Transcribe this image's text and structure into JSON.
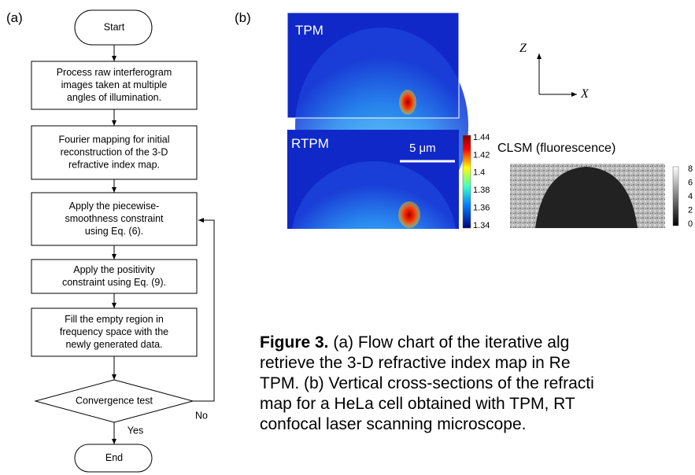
{
  "panels": {
    "a": "(a)",
    "b": "(b)"
  },
  "flowchart": {
    "nodes": [
      {
        "lines": [
          "Start"
        ]
      },
      {
        "lines": [
          "Process raw interferogram",
          "images taken at multiple",
          "angles of illumination."
        ]
      },
      {
        "lines": [
          "Fourier mapping for initial",
          "reconstruction of the 3-D",
          "refractive index map."
        ]
      },
      {
        "lines": [
          "Apply the piecewise-",
          "smoothness constraint",
          "using Eq. (6)."
        ]
      },
      {
        "lines": [
          "Apply the positivity",
          "constraint using Eq. (9)."
        ]
      },
      {
        "lines": [
          "Fill the empty region in",
          "frequency space with the",
          "newly generated data."
        ]
      },
      {
        "lines": [
          "Convergence test"
        ]
      },
      {
        "lines": [
          "End"
        ]
      }
    ],
    "edge_labels": {
      "yes": "Yes",
      "no": "No"
    }
  },
  "images": {
    "tpm": "TPM",
    "rtpm": "RTPM",
    "scale_bar": "5 μm",
    "clsm": "CLSM (fluorescence)",
    "rtpm_colorbar": [
      1.44,
      1.42,
      1.4,
      1.38,
      1.36,
      1.34
    ],
    "clsm_colorbar": [
      8,
      6,
      4,
      2,
      0
    ],
    "axis_z": "Z",
    "axis_x": "X"
  },
  "caption": {
    "label": "Figure 3.",
    "lines": [
      "(a) Flow chart of the iterative alg",
      "retrieve the 3-D refractive index map in Re",
      "TPM. (b) Vertical cross-sections of the refracti",
      "map for a HeLa cell obtained with TPM, RT",
      "confocal laser scanning microscope."
    ]
  }
}
